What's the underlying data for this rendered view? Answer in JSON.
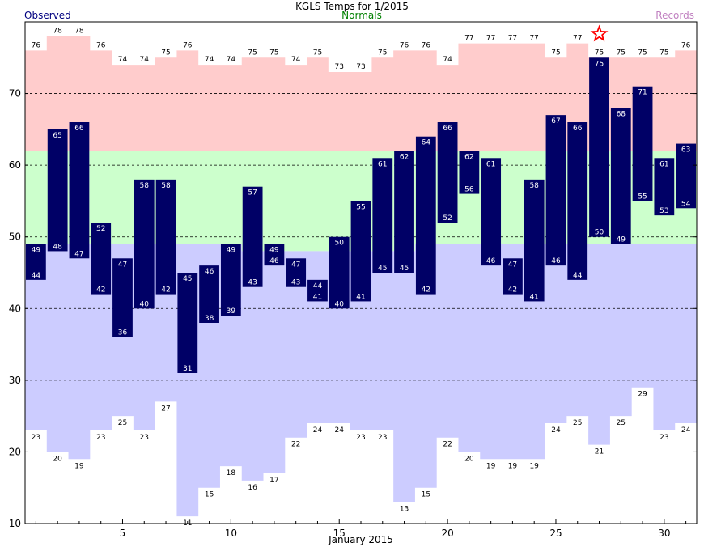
{
  "chart_data": {
    "type": "bar",
    "title": "KGLS Temps for  1/2015",
    "xlabel": "January 2015",
    "ylabel": "",
    "ylim": [
      10,
      80
    ],
    "xlim": [
      0.5,
      31.5
    ],
    "yticks": [
      10,
      20,
      30,
      40,
      50,
      60,
      70
    ],
    "xticks": [
      5,
      10,
      15,
      20,
      25,
      30
    ],
    "grid": true,
    "legend": {
      "observed": "Observed",
      "normals": "Normals",
      "records": "Records"
    },
    "colors": {
      "observed_bar": "#000066",
      "observed_label": "#000080",
      "normals_label": "#008000",
      "records_label": "#c080c0",
      "record_high_fill": "#ffcccc",
      "normal_fill": "#ccffcc",
      "record_low_fill": "#ccccff",
      "star": "#ff0000"
    },
    "days": [
      1,
      2,
      3,
      4,
      5,
      6,
      7,
      8,
      9,
      10,
      11,
      12,
      13,
      14,
      15,
      16,
      17,
      18,
      19,
      20,
      21,
      22,
      23,
      24,
      25,
      26,
      27,
      28,
      29,
      30,
      31
    ],
    "observed_high": [
      49,
      65,
      66,
      52,
      47,
      58,
      58,
      45,
      46,
      49,
      57,
      49,
      47,
      44,
      50,
      55,
      61,
      62,
      64,
      66,
      62,
      61,
      47,
      58,
      67,
      66,
      75,
      68,
      71,
      61,
      63
    ],
    "observed_low": [
      44,
      48,
      47,
      42,
      36,
      40,
      42,
      31,
      38,
      39,
      43,
      46,
      43,
      41,
      40,
      41,
      45,
      45,
      42,
      52,
      56,
      46,
      42,
      41,
      46,
      44,
      50,
      49,
      55,
      53,
      54
    ],
    "normal_high": [
      62,
      62,
      62,
      62,
      62,
      62,
      62,
      62,
      62,
      62,
      62,
      62,
      62,
      62,
      62,
      62,
      62,
      62,
      62,
      62,
      62,
      62,
      62,
      62,
      62,
      62,
      62,
      62,
      62,
      62,
      62
    ],
    "normal_low": [
      49,
      49,
      49,
      49,
      49,
      49,
      49,
      49,
      49,
      49,
      48,
      48,
      48,
      48,
      48,
      48,
      48,
      48,
      49,
      49,
      49,
      49,
      49,
      49,
      49,
      49,
      49,
      49,
      49,
      49,
      49
    ],
    "record_high": [
      76,
      78,
      78,
      76,
      74,
      74,
      75,
      76,
      74,
      74,
      75,
      75,
      74,
      75,
      73,
      73,
      75,
      76,
      76,
      74,
      77,
      77,
      77,
      77,
      75,
      77,
      75,
      75,
      75,
      75,
      76
    ],
    "record_low": [
      23,
      20,
      19,
      23,
      25,
      23,
      27,
      11,
      15,
      18,
      16,
      17,
      22,
      24,
      24,
      23,
      23,
      13,
      15,
      22,
      20,
      19,
      19,
      19,
      24,
      25,
      21,
      25,
      29,
      23,
      24
    ],
    "record_set_day": 27
  }
}
